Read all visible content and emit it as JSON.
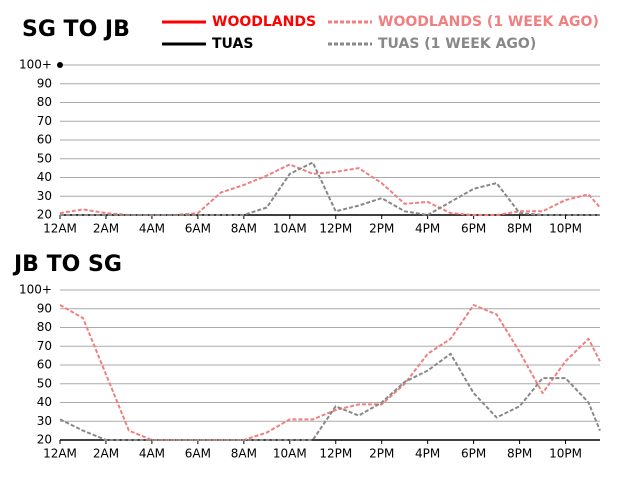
{
  "chart_data": [
    {
      "type": "line",
      "title": "SG TO JB",
      "x": [
        0,
        1,
        2,
        3,
        4,
        5,
        6,
        7,
        8,
        9,
        10,
        11,
        12,
        13,
        14,
        15,
        16,
        17,
        18,
        19,
        20,
        21,
        22,
        23,
        23.5
      ],
      "xlim": [
        0,
        23.5
      ],
      "xticks": [
        {
          "value": 0,
          "label": "12AM"
        },
        {
          "value": 2,
          "label": "2AM"
        },
        {
          "value": 4,
          "label": "4AM"
        },
        {
          "value": 6,
          "label": "6AM"
        },
        {
          "value": 8,
          "label": "8AM"
        },
        {
          "value": 10,
          "label": "10AM"
        },
        {
          "value": 12,
          "label": "12PM"
        },
        {
          "value": 14,
          "label": "2PM"
        },
        {
          "value": 16,
          "label": "4PM"
        },
        {
          "value": 18,
          "label": "6PM"
        },
        {
          "value": 20,
          "label": "8PM"
        },
        {
          "value": 22,
          "label": "10PM"
        }
      ],
      "ylim": [
        20,
        100
      ],
      "yticks": [
        20,
        30,
        40,
        50,
        60,
        70,
        80,
        90,
        {
          "value": 100,
          "label": "100+"
        }
      ],
      "grid": true,
      "series": [
        {
          "name": "WOODLANDS",
          "color": "#ff0000",
          "dash": false,
          "values": [
            null,
            null,
            null,
            null,
            null,
            null,
            null,
            null,
            null,
            null,
            null,
            null,
            null,
            null,
            null,
            null,
            null,
            null,
            null,
            null,
            null,
            null,
            null,
            null,
            null
          ]
        },
        {
          "name": "TUAS",
          "color": "#000000",
          "dash": false,
          "values": [
            100,
            null,
            null,
            null,
            null,
            null,
            null,
            null,
            null,
            null,
            null,
            null,
            null,
            null,
            null,
            null,
            null,
            null,
            null,
            null,
            null,
            null,
            null,
            null,
            null
          ]
        },
        {
          "name": "WOODLANDS (1 WEEK AGO)",
          "color": "#f08080",
          "dash": true,
          "values": [
            21,
            23,
            21,
            20,
            20,
            20,
            21,
            32,
            36,
            41,
            47,
            42,
            43,
            45,
            37,
            26,
            27,
            21,
            20,
            20,
            22,
            22,
            28,
            31,
            24
          ]
        },
        {
          "name": "TUAS (1 WEEK AGO)",
          "color": "#888888",
          "dash": true,
          "values": [
            20,
            20,
            20,
            20,
            20,
            20,
            20,
            20,
            20,
            24,
            42,
            48,
            22,
            25,
            29,
            22,
            20,
            27,
            34,
            37,
            21,
            20,
            20,
            20,
            20
          ]
        }
      ]
    },
    {
      "type": "line",
      "title": "JB TO SG",
      "x": [
        0,
        1,
        2,
        3,
        4,
        5,
        6,
        7,
        8,
        9,
        10,
        11,
        12,
        13,
        14,
        15,
        16,
        17,
        18,
        19,
        20,
        21,
        22,
        23,
        23.5
      ],
      "xlim": [
        0,
        23.5
      ],
      "xticks": [
        {
          "value": 0,
          "label": "12AM"
        },
        {
          "value": 2,
          "label": "2AM"
        },
        {
          "value": 4,
          "label": "4AM"
        },
        {
          "value": 6,
          "label": "6AM"
        },
        {
          "value": 8,
          "label": "8AM"
        },
        {
          "value": 10,
          "label": "10AM"
        },
        {
          "value": 12,
          "label": "12PM"
        },
        {
          "value": 14,
          "label": "2PM"
        },
        {
          "value": 16,
          "label": "4PM"
        },
        {
          "value": 18,
          "label": "6PM"
        },
        {
          "value": 20,
          "label": "8PM"
        },
        {
          "value": 22,
          "label": "10PM"
        }
      ],
      "ylim": [
        20,
        100
      ],
      "yticks": [
        20,
        30,
        40,
        50,
        60,
        70,
        80,
        90,
        {
          "value": 100,
          "label": "100+"
        }
      ],
      "grid": true,
      "series": [
        {
          "color": "#f08080",
          "dash": true,
          "values": [
            92,
            85,
            55,
            25,
            20,
            20,
            20,
            20,
            20,
            24,
            31,
            31,
            36,
            39,
            39,
            50,
            66,
            74,
            92,
            87,
            67,
            45,
            62,
            74,
            62
          ]
        },
        {
          "color": "#888888",
          "dash": true,
          "values": [
            31,
            25,
            20,
            20,
            20,
            20,
            20,
            20,
            20,
            20,
            20,
            20,
            38,
            33,
            40,
            51,
            57,
            66,
            45,
            32,
            38,
            53,
            53,
            40,
            25
          ]
        }
      ]
    }
  ]
}
